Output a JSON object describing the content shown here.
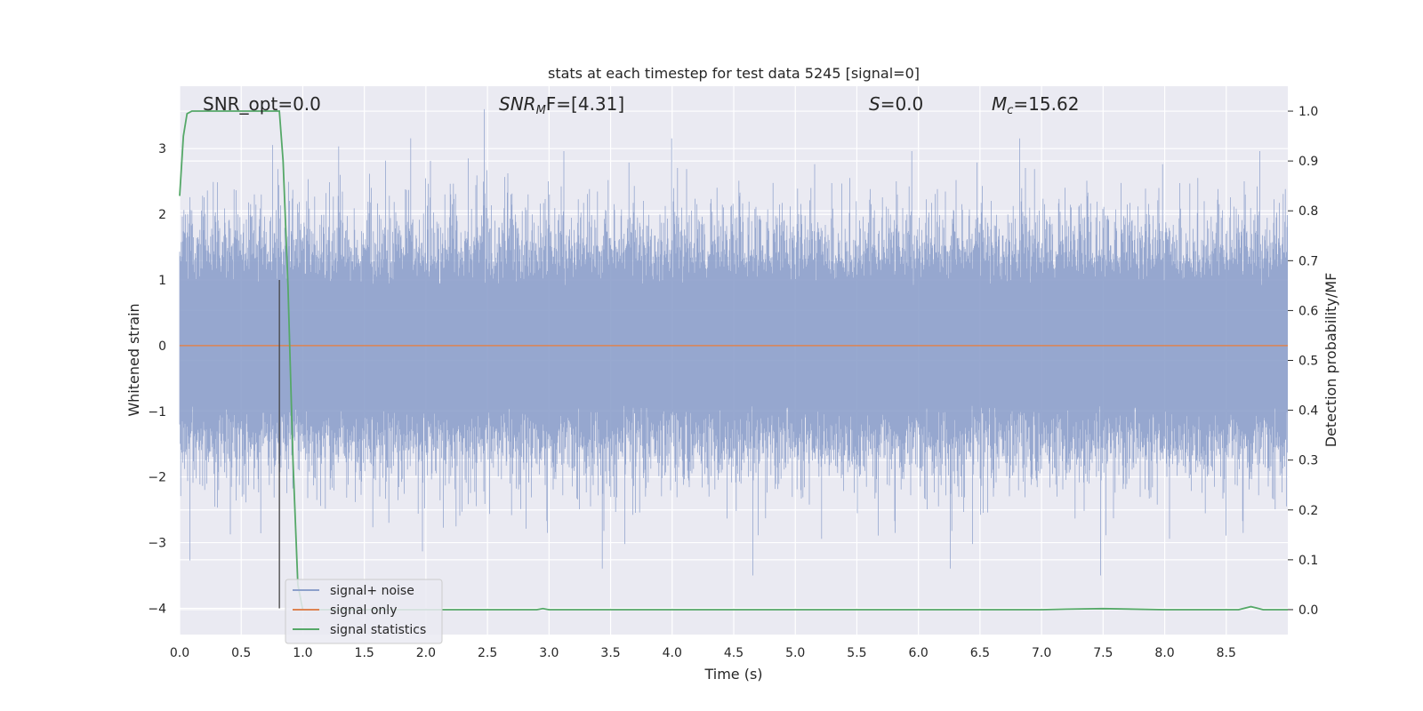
{
  "chart_data": {
    "type": "line",
    "title": "stats at each timestep for test data 5245 [signal=0]",
    "xlabel": "Time (s)",
    "ylabel_left": "Whitened strain",
    "ylabel_right": "Detection probability/MF",
    "xlim": [
      0.0,
      9.0
    ],
    "ylim_left": [
      -4.4,
      3.95
    ],
    "ylim_right": [
      -0.05,
      1.05
    ],
    "x_ticks": [
      "0.0",
      "0.5",
      "1.0",
      "1.5",
      "2.0",
      "2.5",
      "3.0",
      "3.5",
      "4.0",
      "4.5",
      "5.0",
      "5.5",
      "6.0",
      "6.5",
      "7.0",
      "7.5",
      "8.0",
      "8.5"
    ],
    "y_ticks_left": [
      "3",
      "2",
      "1",
      "0",
      "−1",
      "−2",
      "−3",
      "−4"
    ],
    "y_ticks_left_values": [
      3,
      2,
      1,
      0,
      -1,
      -2,
      -3,
      -4
    ],
    "y_ticks_right": [
      "1.0",
      "0.9",
      "0.8",
      "0.7",
      "0.6",
      "0.5",
      "0.4",
      "0.3",
      "0.2",
      "0.1",
      "0.0"
    ],
    "y_ticks_right_values": [
      1.0,
      0.9,
      0.8,
      0.7,
      0.6,
      0.5,
      0.4,
      0.3,
      0.2,
      0.1,
      0.0
    ],
    "grid": true,
    "legend_position": "lower-left",
    "annotations": {
      "snr_opt": "SNR_opt=0.0",
      "snr_mf_sym": "SNR",
      "snr_mf_sub": "M",
      "snr_mf_rest": "F=[4.31]",
      "s_sym": "S",
      "s_rest": "=0.0",
      "mc_sym": "M",
      "mc_sub": "c",
      "mc_rest": "=15.62"
    },
    "vertical_marker_x": 0.81,
    "series": [
      {
        "name": "signal+ noise",
        "axis": "left",
        "color": "#8da0cb",
        "description_range": [
          -4.0,
          3.6
        ]
      },
      {
        "name": "signal only",
        "axis": "left",
        "color": "#dd8452",
        "x": [
          0.0,
          9.0
        ],
        "y": [
          0.0,
          0.0
        ]
      },
      {
        "name": "signal statistics",
        "axis": "right",
        "color": "#55a868",
        "x": [
          0.0,
          0.03,
          0.06,
          0.1,
          0.2,
          0.3,
          0.4,
          0.5,
          0.6,
          0.7,
          0.78,
          0.81,
          0.84,
          0.88,
          0.92,
          0.96,
          1.0,
          2.0,
          2.9,
          2.95,
          3.0,
          4.0,
          5.0,
          6.0,
          7.0,
          7.2,
          7.5,
          8.0,
          8.6,
          8.7,
          8.75,
          8.8,
          8.9,
          9.0
        ],
        "y": [
          0.83,
          0.95,
          0.995,
          1.0,
          1.0,
          1.0,
          1.0,
          1.0,
          1.0,
          1.0,
          1.0,
          1.0,
          0.9,
          0.65,
          0.3,
          0.05,
          0.0,
          0.0,
          0.0,
          0.002,
          0.0,
          0.0,
          0.0,
          0.0,
          0.0,
          0.001,
          0.002,
          0.0,
          0.0,
          0.006,
          0.003,
          0.0,
          0.0,
          0.0
        ]
      }
    ]
  }
}
